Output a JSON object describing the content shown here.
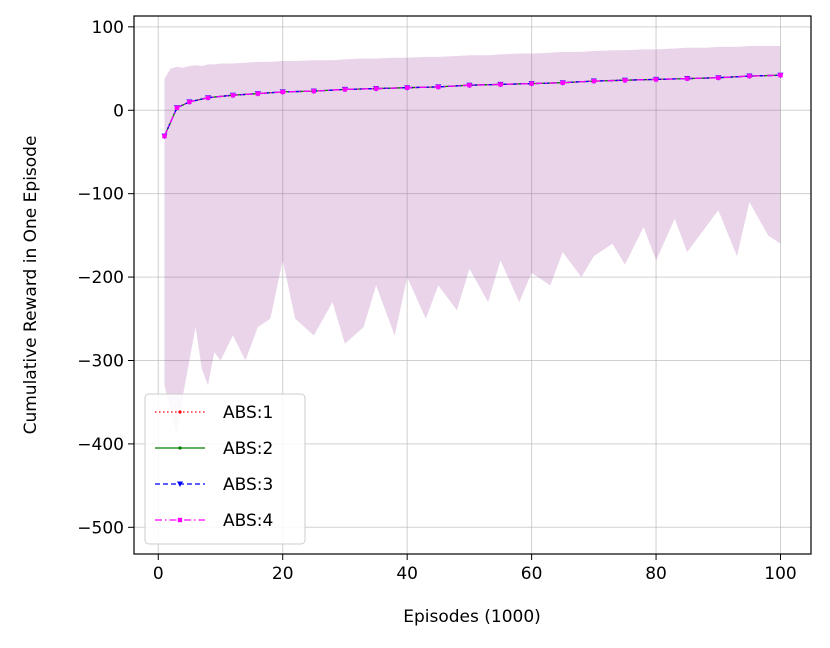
{
  "chart_data": {
    "type": "line",
    "title": "",
    "xlabel": "Episodes (1000)",
    "ylabel": "Cumulative Reward in One Episode",
    "xlim": [
      -3.9,
      104.9
    ],
    "ylim": [
      -532,
      113
    ],
    "xticks": [
      0,
      20,
      40,
      60,
      80,
      100
    ],
    "yticks": [
      100,
      0,
      -100,
      -200,
      -300,
      -400,
      -500
    ],
    "xtick_labels": [
      "0",
      "20",
      "40",
      "60",
      "80",
      "100"
    ],
    "ytick_labels": [
      "100",
      "0",
      "−100",
      "−200",
      "−300",
      "−400",
      "−500"
    ],
    "grid": true,
    "legend_position": "lower-left",
    "x": [
      1,
      3,
      5,
      8,
      12,
      16,
      20,
      25,
      30,
      35,
      40,
      45,
      50,
      55,
      60,
      65,
      70,
      75,
      80,
      85,
      90,
      95,
      100
    ],
    "series": [
      {
        "name": "ABS:1",
        "color": "#ff0000",
        "linestyle": "dotted",
        "marker": "dot",
        "values": [
          -31,
          3,
          10,
          15,
          18,
          20,
          22,
          23,
          25,
          26,
          27,
          28,
          30,
          31,
          32,
          33,
          35,
          36,
          37,
          38,
          39,
          41,
          42
        ]
      },
      {
        "name": "ABS:2",
        "color": "#008000",
        "linestyle": "solid",
        "marker": "dot",
        "values": [
          -31,
          3,
          10,
          15,
          18,
          20,
          22,
          23,
          25,
          26,
          27,
          28,
          30,
          31,
          32,
          33,
          35,
          36,
          37,
          38,
          39,
          41,
          42
        ]
      },
      {
        "name": "ABS:3",
        "color": "#0000ff",
        "linestyle": "dashed",
        "marker": "triangle-down",
        "values": [
          -31,
          3,
          10,
          15,
          18,
          20,
          22,
          23,
          25,
          26,
          27,
          28,
          30,
          31,
          32,
          33,
          35,
          36,
          37,
          38,
          39,
          41,
          42
        ]
      },
      {
        "name": "ABS:4",
        "color": "#ff00ff",
        "linestyle": "dashdot",
        "marker": "square",
        "values": [
          -31,
          3,
          10,
          15,
          18,
          20,
          22,
          23,
          25,
          26,
          27,
          28,
          30,
          31,
          32,
          33,
          35,
          36,
          37,
          38,
          39,
          41,
          42
        ]
      }
    ],
    "band": {
      "color": "#9b3c9b",
      "x": [
        1,
        2,
        3,
        4,
        5,
        6,
        7,
        8,
        9,
        10,
        12,
        14,
        16,
        18,
        20,
        22,
        25,
        28,
        30,
        33,
        35,
        38,
        40,
        43,
        45,
        48,
        50,
        53,
        55,
        58,
        60,
        63,
        65,
        68,
        70,
        73,
        75,
        78,
        80,
        83,
        85,
        88,
        90,
        93,
        95,
        98,
        100
      ],
      "upper": [
        38,
        50,
        52,
        51,
        53,
        54,
        53,
        55,
        55,
        56,
        56,
        57,
        58,
        58,
        59,
        59,
        60,
        60,
        61,
        62,
        62,
        63,
        63,
        64,
        64,
        65,
        66,
        66,
        67,
        68,
        68,
        69,
        70,
        70,
        71,
        72,
        72,
        73,
        73,
        74,
        75,
        75,
        76,
        76,
        77,
        77,
        77
      ],
      "lower": [
        -330,
        -360,
        -390,
        -340,
        -300,
        -260,
        -310,
        -330,
        -290,
        -300,
        -270,
        -300,
        -260,
        -250,
        -180,
        -250,
        -270,
        -230,
        -280,
        -260,
        -210,
        -270,
        -200,
        -250,
        -210,
        -240,
        -190,
        -230,
        -180,
        -230,
        -195,
        -210,
        -170,
        -200,
        -175,
        -160,
        -185,
        -140,
        -180,
        -130,
        -170,
        -140,
        -120,
        -175,
        -110,
        -150,
        -160
      ]
    }
  }
}
